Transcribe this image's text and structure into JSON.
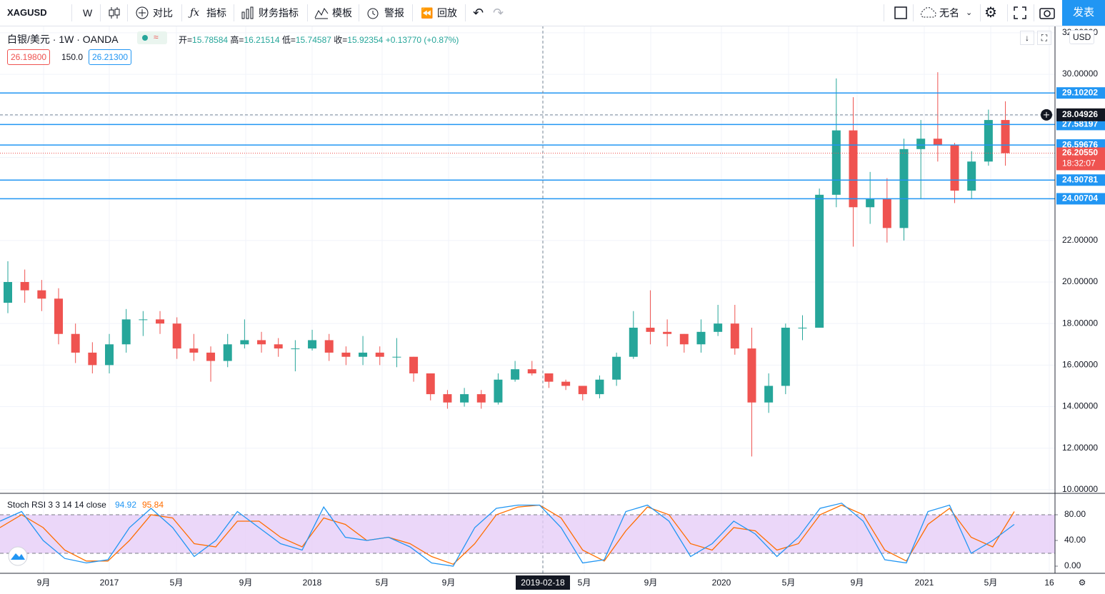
{
  "toolbar": {
    "symbol": "XAGUSD",
    "interval": "W",
    "compare": "对比",
    "indicators": "指标",
    "financials": "财务指标",
    "templates": "模板",
    "alert": "警报",
    "replay": "回放",
    "layout_name": "无名",
    "publish": "发表"
  },
  "legend": {
    "title": "白银/美元 · 1W · OANDA",
    "open": {
      "label": "开=",
      "value": "15.78584"
    },
    "high": {
      "label": "高=",
      "value": "16.21514"
    },
    "low": {
      "label": "低=",
      "value": "15.74587"
    },
    "close": {
      "label": "收=",
      "value": "15.92354"
    },
    "change": "+0.13770 (+0.87%)",
    "bid": "26.19800",
    "spread": "150.0",
    "ask": "26.21300"
  },
  "time_axis": {
    "labels": [
      "9月",
      "2017",
      "5月",
      "9月",
      "2018",
      "5月",
      "9月",
      "5月",
      "9月",
      "2020",
      "5月",
      "9月",
      "2021",
      "5月",
      "16"
    ]
  },
  "chart_data": [
    {
      "type": "candlestick",
      "currency": "USD",
      "x": [
        "2016-07",
        "2016-08",
        "2016-09",
        "2016-10",
        "2016-11",
        "2016-12",
        "2017-01",
        "2017-02",
        "2017-03",
        "2017-04",
        "2017-05",
        "2017-06",
        "2017-07",
        "2017-08",
        "2017-09",
        "2017-10",
        "2017-11",
        "2017-12",
        "2018-01",
        "2018-02",
        "2018-03",
        "2018-04",
        "2018-05",
        "2018-06",
        "2018-07",
        "2018-08",
        "2018-09",
        "2018-10",
        "2018-11",
        "2018-12",
        "2019-01",
        "2019-02",
        "2019-03",
        "2019-04",
        "2019-05",
        "2019-06",
        "2019-07",
        "2019-08",
        "2019-09",
        "2019-10",
        "2019-11",
        "2019-12",
        "2020-01",
        "2020-02",
        "2020-03",
        "2020-04",
        "2020-05",
        "2020-06",
        "2020-07",
        "2020-08",
        "2020-09",
        "2020-10",
        "2020-11",
        "2020-12",
        "2021-01",
        "2021-02",
        "2021-03",
        "2021-04",
        "2021-05",
        "2021-06"
      ],
      "open": [
        19.0,
        20.0,
        19.6,
        19.2,
        17.5,
        16.6,
        16.0,
        17.0,
        18.2,
        18.2,
        18.0,
        16.8,
        16.6,
        16.2,
        17.0,
        17.2,
        17.0,
        16.8,
        16.8,
        17.2,
        16.6,
        16.4,
        16.6,
        16.4,
        16.4,
        15.6,
        14.6,
        14.2,
        14.6,
        14.2,
        15.3,
        15.8,
        15.6,
        15.2,
        15.0,
        14.6,
        15.3,
        16.4,
        17.8,
        17.6,
        17.5,
        17.0,
        17.6,
        18.0,
        16.8,
        14.2,
        15.0,
        17.8,
        17.8,
        24.2,
        27.3,
        23.6,
        24.0,
        22.6,
        26.4,
        26.9,
        26.6,
        24.4,
        25.8,
        27.8
      ],
      "high": [
        21.0,
        20.6,
        20.1,
        19.7,
        18.0,
        17.1,
        17.5,
        18.7,
        18.6,
        18.6,
        18.3,
        17.5,
        16.9,
        17.5,
        18.2,
        17.6,
        17.3,
        17.2,
        17.7,
        17.5,
        16.9,
        17.4,
        16.9,
        17.3,
        16.4,
        15.6,
        14.8,
        14.9,
        14.8,
        15.6,
        16.2,
        16.2,
        15.6,
        15.3,
        15.0,
        15.5,
        16.6,
        18.6,
        19.6,
        18.2,
        17.5,
        18.2,
        18.9,
        18.9,
        17.8,
        15.6,
        18.0,
        18.4,
        24.5,
        29.8,
        28.9,
        25.3,
        25.0,
        26.9,
        27.8,
        30.1,
        26.7,
        26.3,
        28.3,
        28.7
      ],
      "low": [
        18.5,
        19.0,
        18.6,
        17.0,
        16.1,
        15.6,
        15.6,
        16.6,
        17.4,
        17.5,
        16.3,
        16.2,
        15.2,
        15.9,
        16.8,
        16.6,
        16.4,
        15.7,
        16.7,
        16.2,
        16.0,
        16.0,
        16.0,
        15.9,
        15.2,
        14.3,
        13.9,
        14.0,
        13.9,
        14.1,
        15.2,
        15.5,
        14.9,
        14.8,
        14.3,
        14.4,
        15.0,
        16.3,
        17.0,
        16.9,
        16.6,
        16.6,
        17.4,
        16.5,
        11.6,
        13.7,
        14.6,
        17.2,
        17.8,
        23.6,
        21.7,
        22.8,
        21.9,
        22.0,
        24.0,
        25.8,
        23.8,
        24.0,
        25.6,
        25.6
      ],
      "close": [
        20.0,
        19.6,
        19.2,
        17.5,
        16.6,
        16.0,
        17.0,
        18.2,
        18.2,
        18.0,
        16.8,
        16.6,
        16.2,
        17.0,
        17.2,
        17.0,
        16.8,
        16.8,
        17.2,
        16.6,
        16.4,
        16.6,
        16.4,
        16.4,
        15.6,
        14.6,
        14.2,
        14.6,
        14.2,
        15.3,
        15.8,
        15.6,
        15.2,
        15.0,
        14.6,
        15.3,
        16.4,
        17.8,
        17.6,
        17.5,
        17.0,
        17.6,
        18.0,
        16.8,
        14.2,
        15.0,
        17.8,
        17.8,
        24.2,
        27.3,
        23.6,
        24.0,
        22.6,
        26.4,
        26.9,
        26.6,
        24.4,
        25.8,
        27.8,
        26.2
      ],
      "up_color": "#26a69a",
      "down_color": "#ef5350",
      "ylim": [
        9.86,
        32.34
      ],
      "yticks": [
        {
          "value": 10,
          "label": "10.00000"
        },
        {
          "value": 12,
          "label": "12.00000"
        },
        {
          "value": 14,
          "label": "14.00000"
        },
        {
          "value": 16,
          "label": "16.00000"
        },
        {
          "value": 18,
          "label": "18.00000"
        },
        {
          "value": 20,
          "label": "20.00000"
        },
        {
          "value": 22,
          "label": "22.00000"
        },
        {
          "value": 24,
          "label": "24.00000"
        },
        {
          "value": 26,
          "label": "26.00000"
        },
        {
          "value": 28,
          "label": "28.00000"
        },
        {
          "value": 30,
          "label": "30.00000"
        },
        {
          "value": 32,
          "label": "32.00000"
        }
      ],
      "grid": true,
      "hlines": [
        29.10202,
        27.58197,
        26.59676,
        24.90781,
        24.00704
      ],
      "hline_color": "#2196f3",
      "crosshair": {
        "date": "2019-02-18",
        "price": 28.04926
      },
      "last_price": {
        "value": 26.2055,
        "label": "26.20550"
      },
      "countdown": "18:32:07"
    },
    {
      "type": "line",
      "title": "Stoch RSI 3 3 14 14 close",
      "series": [
        {
          "color": "#2196f3",
          "legend_value": "94.92",
          "values": [
            70,
            85,
            40,
            12,
            5,
            10,
            60,
            90,
            60,
            15,
            40,
            85,
            60,
            35,
            25,
            92,
            45,
            40,
            45,
            30,
            5,
            0,
            60,
            90,
            95,
            95,
            60,
            5,
            10,
            85,
            95,
            70,
            15,
            35,
            70,
            50,
            15,
            45,
            90,
            98,
            70,
            10,
            5,
            85,
            95,
            20,
            40,
            65
          ]
        },
        {
          "color": "#ff6d00",
          "legend_value": "95.84",
          "values": [
            60,
            80,
            60,
            25,
            8,
            8,
            40,
            80,
            75,
            35,
            30,
            70,
            70,
            45,
            30,
            75,
            65,
            40,
            45,
            35,
            15,
            3,
            35,
            80,
            92,
            95,
            75,
            25,
            8,
            55,
            92,
            80,
            35,
            25,
            60,
            55,
            25,
            35,
            80,
            95,
            80,
            25,
            8,
            65,
            90,
            45,
            30,
            85
          ]
        }
      ],
      "band": [
        20,
        80
      ],
      "band_color": "#e6cdf7",
      "ylim": [
        -11.1,
        112.2
      ],
      "yticks": [
        {
          "value": 0,
          "label": "0.00"
        },
        {
          "value": 40,
          "label": "40.00"
        },
        {
          "value": 80,
          "label": "80.00"
        }
      ]
    }
  ]
}
